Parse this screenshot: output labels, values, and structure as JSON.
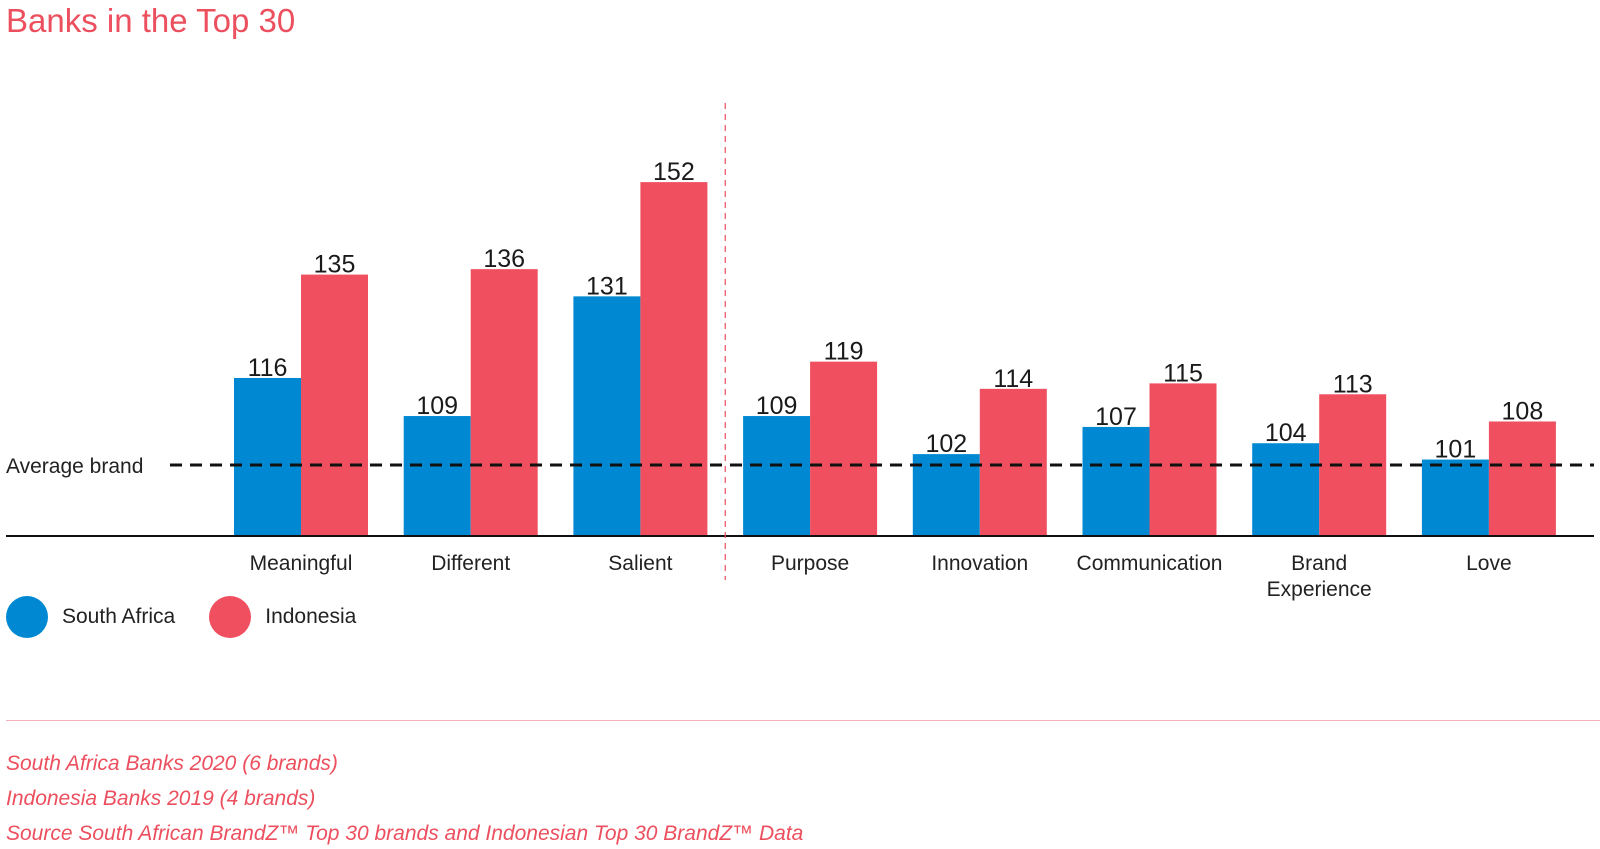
{
  "title": "Banks in the Top 30",
  "colors": {
    "south_africa": "#0089d2",
    "indonesia": "#ef4f5f",
    "accent": "#ec4f5e"
  },
  "chart_data": {
    "type": "bar",
    "categories": [
      "Meaningful",
      "Different",
      "Salient",
      "Purpose",
      "Innovation",
      "Communication",
      "Brand Experience",
      "Love"
    ],
    "category_lines": [
      [
        "Meaningful"
      ],
      [
        "Different"
      ],
      [
        "Salient"
      ],
      [
        "Purpose"
      ],
      [
        "Innovation"
      ],
      [
        "Communication"
      ],
      [
        "Brand",
        "Experience"
      ],
      [
        "Love"
      ]
    ],
    "series": [
      {
        "name": "South Africa",
        "values": [
          116,
          109,
          131,
          109,
          102,
          107,
          104,
          101
        ]
      },
      {
        "name": "Indonesia",
        "values": [
          135,
          136,
          152,
          119,
          114,
          115,
          113,
          108
        ]
      }
    ],
    "reference_line": {
      "label": "Average brand",
      "value": 100
    },
    "ylim": [
      85,
      160
    ],
    "legend": "bottom-left"
  },
  "legend": [
    {
      "label": "South Africa",
      "color": "#0089d2"
    },
    {
      "label": "Indonesia",
      "color": "#ef4f5f"
    }
  ],
  "notes": [
    "South Africa Banks 2020 (6 brands)",
    "Indonesia Banks 2019 (4 brands)",
    "Source South African BrandZ™ Top 30 brands and Indonesian Top 30 BrandZ™ Data"
  ]
}
